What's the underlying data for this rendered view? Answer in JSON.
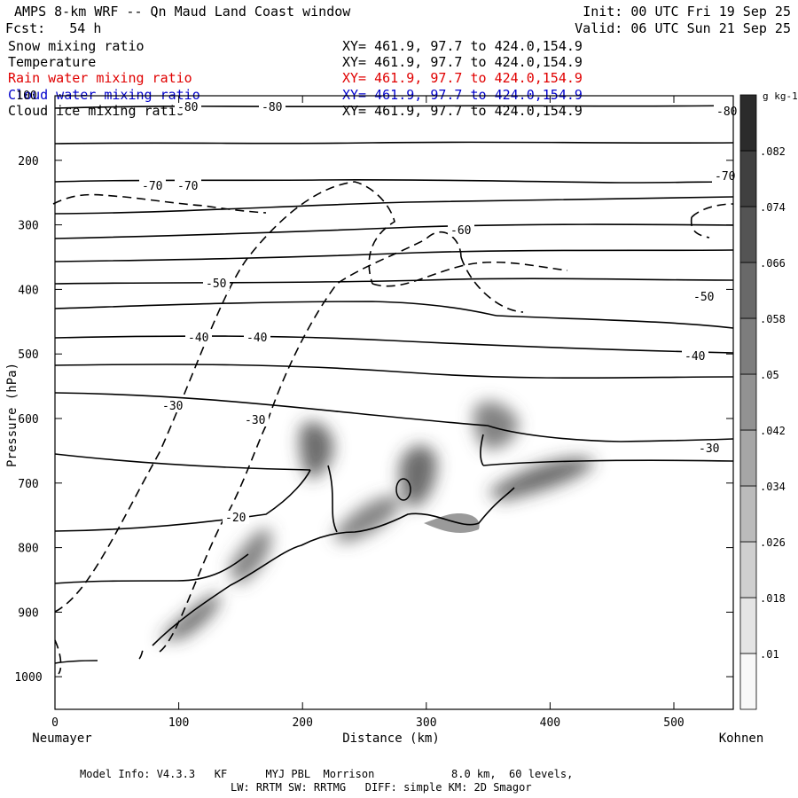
{
  "header": {
    "title": "AMPS 8-km WRF -- Qn Maud Land Coast window",
    "init": "Init: 00 UTC Fri 19 Sep 25",
    "fcst": "Fcst:   54 h",
    "valid": "Valid: 06 UTC Sun 21 Sep 25"
  },
  "fields": [
    {
      "name": "Snow mixing ratio",
      "xy": "XY= 461.9, 97.7 to 424.0,154.9",
      "color": "#000000"
    },
    {
      "name": "Temperature",
      "xy": "XY= 461.9, 97.7 to 424.0,154.9",
      "color": "#000000"
    },
    {
      "name": "Rain water mixing ratio",
      "xy": "XY= 461.9, 97.7 to 424.0,154.9",
      "color": "#e00000"
    },
    {
      "name": "Cloud water mixing ratio",
      "xy": "XY= 461.9, 97.7 to 424.0,154.9",
      "color": "#0000cc"
    },
    {
      "name": "Cloud ice mixing ratio",
      "xy": "XY= 461.9, 97.7 to 424.0,154.9",
      "color": "#000000"
    }
  ],
  "footer": {
    "line1": "Model Info: V4.3.3   KF      MYJ PBL  Morrison            8.0 km,  60 levels,",
    "line2": "LW: RRTM SW: RRTMG   DIFF: simple KM: 2D Smagor"
  },
  "chart_data": {
    "type": "contour",
    "title": "AMPS 8-km WRF -- Qn Maud Land Coast window",
    "xlabel": "Distance (km)",
    "ylabel": "Pressure (hPa)",
    "x_ticks": [
      0,
      100,
      200,
      300,
      400,
      500
    ],
    "y_ticks": [
      200,
      300,
      400,
      500,
      600,
      700,
      800,
      900,
      1000
    ],
    "top_tick_label": "100",
    "xlim": [
      0,
      548
    ],
    "ylim": [
      1050,
      100
    ],
    "x_end_labels": {
      "left": "Neumayer",
      "right": "Kohnen"
    },
    "colorbar": {
      "unit": "g kg-1",
      "levels": [
        ".01",
        ".018",
        ".026",
        ".034",
        ".042",
        ".05",
        ".058",
        ".066",
        ".074",
        ".082"
      ]
    },
    "temperature_contour_labels": [
      "-80",
      "-80",
      "-80",
      "-70",
      "-70",
      "-70",
      "-60",
      "-50",
      "-50",
      "-40",
      "-40",
      "-40",
      "-30",
      "-30",
      "-30",
      "-20"
    ],
    "series": [
      {
        "name": "Temperature",
        "style": "solid",
        "color": "#000000"
      },
      {
        "name": "Snow mixing ratio",
        "style": "filled",
        "color": "#333333"
      }
    ]
  }
}
